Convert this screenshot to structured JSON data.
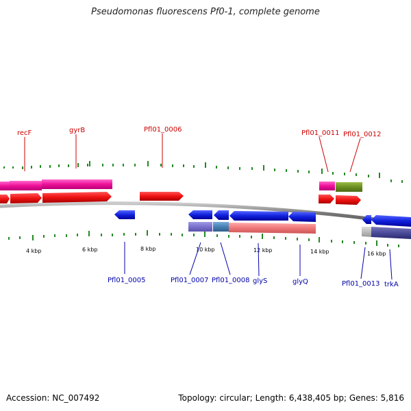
{
  "title": "Pseudomonas fluorescens Pf0-1, complete genome",
  "footer": {
    "accession": "Accession: NC_007492",
    "summary": "Topology: circular; Length: 6,438,405 bp; Genes: 5,816"
  },
  "scale_labels": [
    "4 kbp",
    "6 kbp",
    "8 kbp",
    "10 kbp",
    "12 kbp",
    "14 kbp",
    "16 kbp"
  ],
  "top_genes": [
    "recF",
    "gyrB",
    "Pfl01_0006",
    "Pfl01_0011",
    "Pfl01_0012"
  ],
  "bottom_genes": [
    "Pfl01_0005",
    "Pfl01_0007",
    "Pfl01_0008",
    "glyS",
    "glyQ",
    "Pfl01_0013",
    "trkA"
  ],
  "colors": {
    "forward_cds": "#ee1111",
    "reverse_cds": "#1111dd",
    "backbone": "#8a8a8a",
    "tick": "#228822",
    "top_label": "#cc0000",
    "bottom_label": "#0000aa"
  }
}
